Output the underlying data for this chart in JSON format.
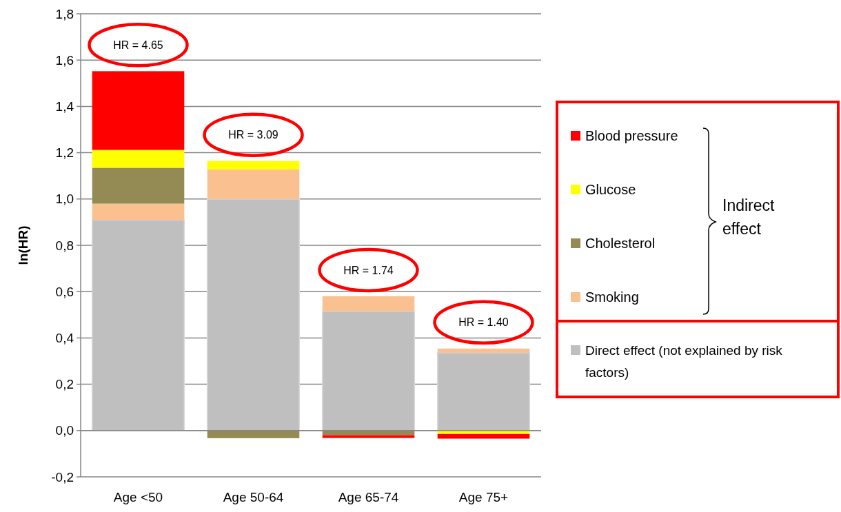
{
  "chart_data": {
    "type": "bar",
    "stacked": true,
    "ylabel": "ln(HR)",
    "categories": [
      "Age <50",
      "Age 50-64",
      "Age 65-74",
      "Age 75+"
    ],
    "series": [
      {
        "name": "Direct effect (not explained by risk factors)",
        "color": "#bfbfbf",
        "values": [
          0.91,
          1.0,
          0.515,
          0.336
        ]
      },
      {
        "name": "Smoking",
        "color": "#fac090",
        "values": [
          0.07,
          0.128,
          0.065,
          0.018
        ]
      },
      {
        "name": "Cholesterol",
        "color": "#948a54",
        "values": [
          0.155,
          -0.033,
          -0.02,
          null
        ]
      },
      {
        "name": "Glucose",
        "color": "#ffff00",
        "values": [
          0.077,
          0.036,
          null,
          -0.015
        ]
      },
      {
        "name": "Blood pressure",
        "color": "#ff0000",
        "values": [
          0.34,
          null,
          -0.012,
          -0.02
        ]
      }
    ],
    "ylim": [
      -0.2,
      1.8
    ],
    "yticks": [
      {
        "value": -0.2,
        "label": "-0,2"
      },
      {
        "value": 0,
        "label": "0,0"
      },
      {
        "value": 0.2,
        "label": "0,2"
      },
      {
        "value": 0.4,
        "label": "0,4"
      },
      {
        "value": 0.6,
        "label": "0,6"
      },
      {
        "value": 0.8,
        "label": "0,8"
      },
      {
        "value": 1.0,
        "label": "1,0"
      },
      {
        "value": 1.2,
        "label": "1,2"
      },
      {
        "value": 1.4,
        "label": "1,4"
      },
      {
        "value": 1.6,
        "label": "1,6"
      },
      {
        "value": 1.8,
        "label": "1,8"
      }
    ],
    "grid": "y",
    "legend": "right",
    "legend_title": "Indirect effect",
    "annotations": [
      "HR = 4.65",
      "HR = 3.09",
      "HR = 1.74",
      "HR = 1.40"
    ]
  }
}
